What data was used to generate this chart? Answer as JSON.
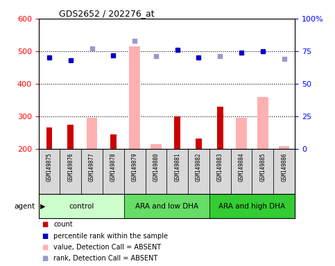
{
  "title": "GDS2652 / 202276_at",
  "samples": [
    "GSM149875",
    "GSM149876",
    "GSM149877",
    "GSM149878",
    "GSM149879",
    "GSM149880",
    "GSM149881",
    "GSM149882",
    "GSM149883",
    "GSM149884",
    "GSM149885",
    "GSM149886"
  ],
  "count_values": [
    265,
    275,
    null,
    245,
    null,
    null,
    300,
    233,
    330,
    null,
    null,
    null
  ],
  "count_absent": [
    null,
    null,
    295,
    null,
    515,
    215,
    null,
    null,
    null,
    295,
    360,
    208
  ],
  "rank_values": [
    70,
    68,
    null,
    72,
    null,
    null,
    76,
    70,
    null,
    74,
    75,
    null
  ],
  "rank_absent": [
    null,
    null,
    77,
    null,
    83,
    71,
    null,
    null,
    71,
    null,
    null,
    69
  ],
  "ylim_left": [
    200,
    600
  ],
  "ylim_right": [
    0,
    100
  ],
  "yticks_left": [
    200,
    300,
    400,
    500,
    600
  ],
  "yticks_right": [
    0,
    25,
    50,
    75,
    100
  ],
  "hlines": [
    300,
    400,
    500
  ],
  "count_color": "#cc0000",
  "absent_bar_color": "#ffb0b0",
  "rank_dot_color": "#0000cc",
  "rank_absent_color": "#9999cc",
  "group_labels": [
    "control",
    "ARA and low DHA",
    "ARA and high DHA"
  ],
  "group_ranges": [
    [
      0,
      3
    ],
    [
      4,
      7
    ],
    [
      8,
      11
    ]
  ],
  "group_colors": [
    "#ccffcc",
    "#66dd66",
    "#33cc33"
  ],
  "legend_labels": [
    "count",
    "percentile rank within the sample",
    "value, Detection Call = ABSENT",
    "rank, Detection Call = ABSENT"
  ],
  "legend_colors": [
    "#cc0000",
    "#0000cc",
    "#ffb0b0",
    "#9999cc"
  ]
}
